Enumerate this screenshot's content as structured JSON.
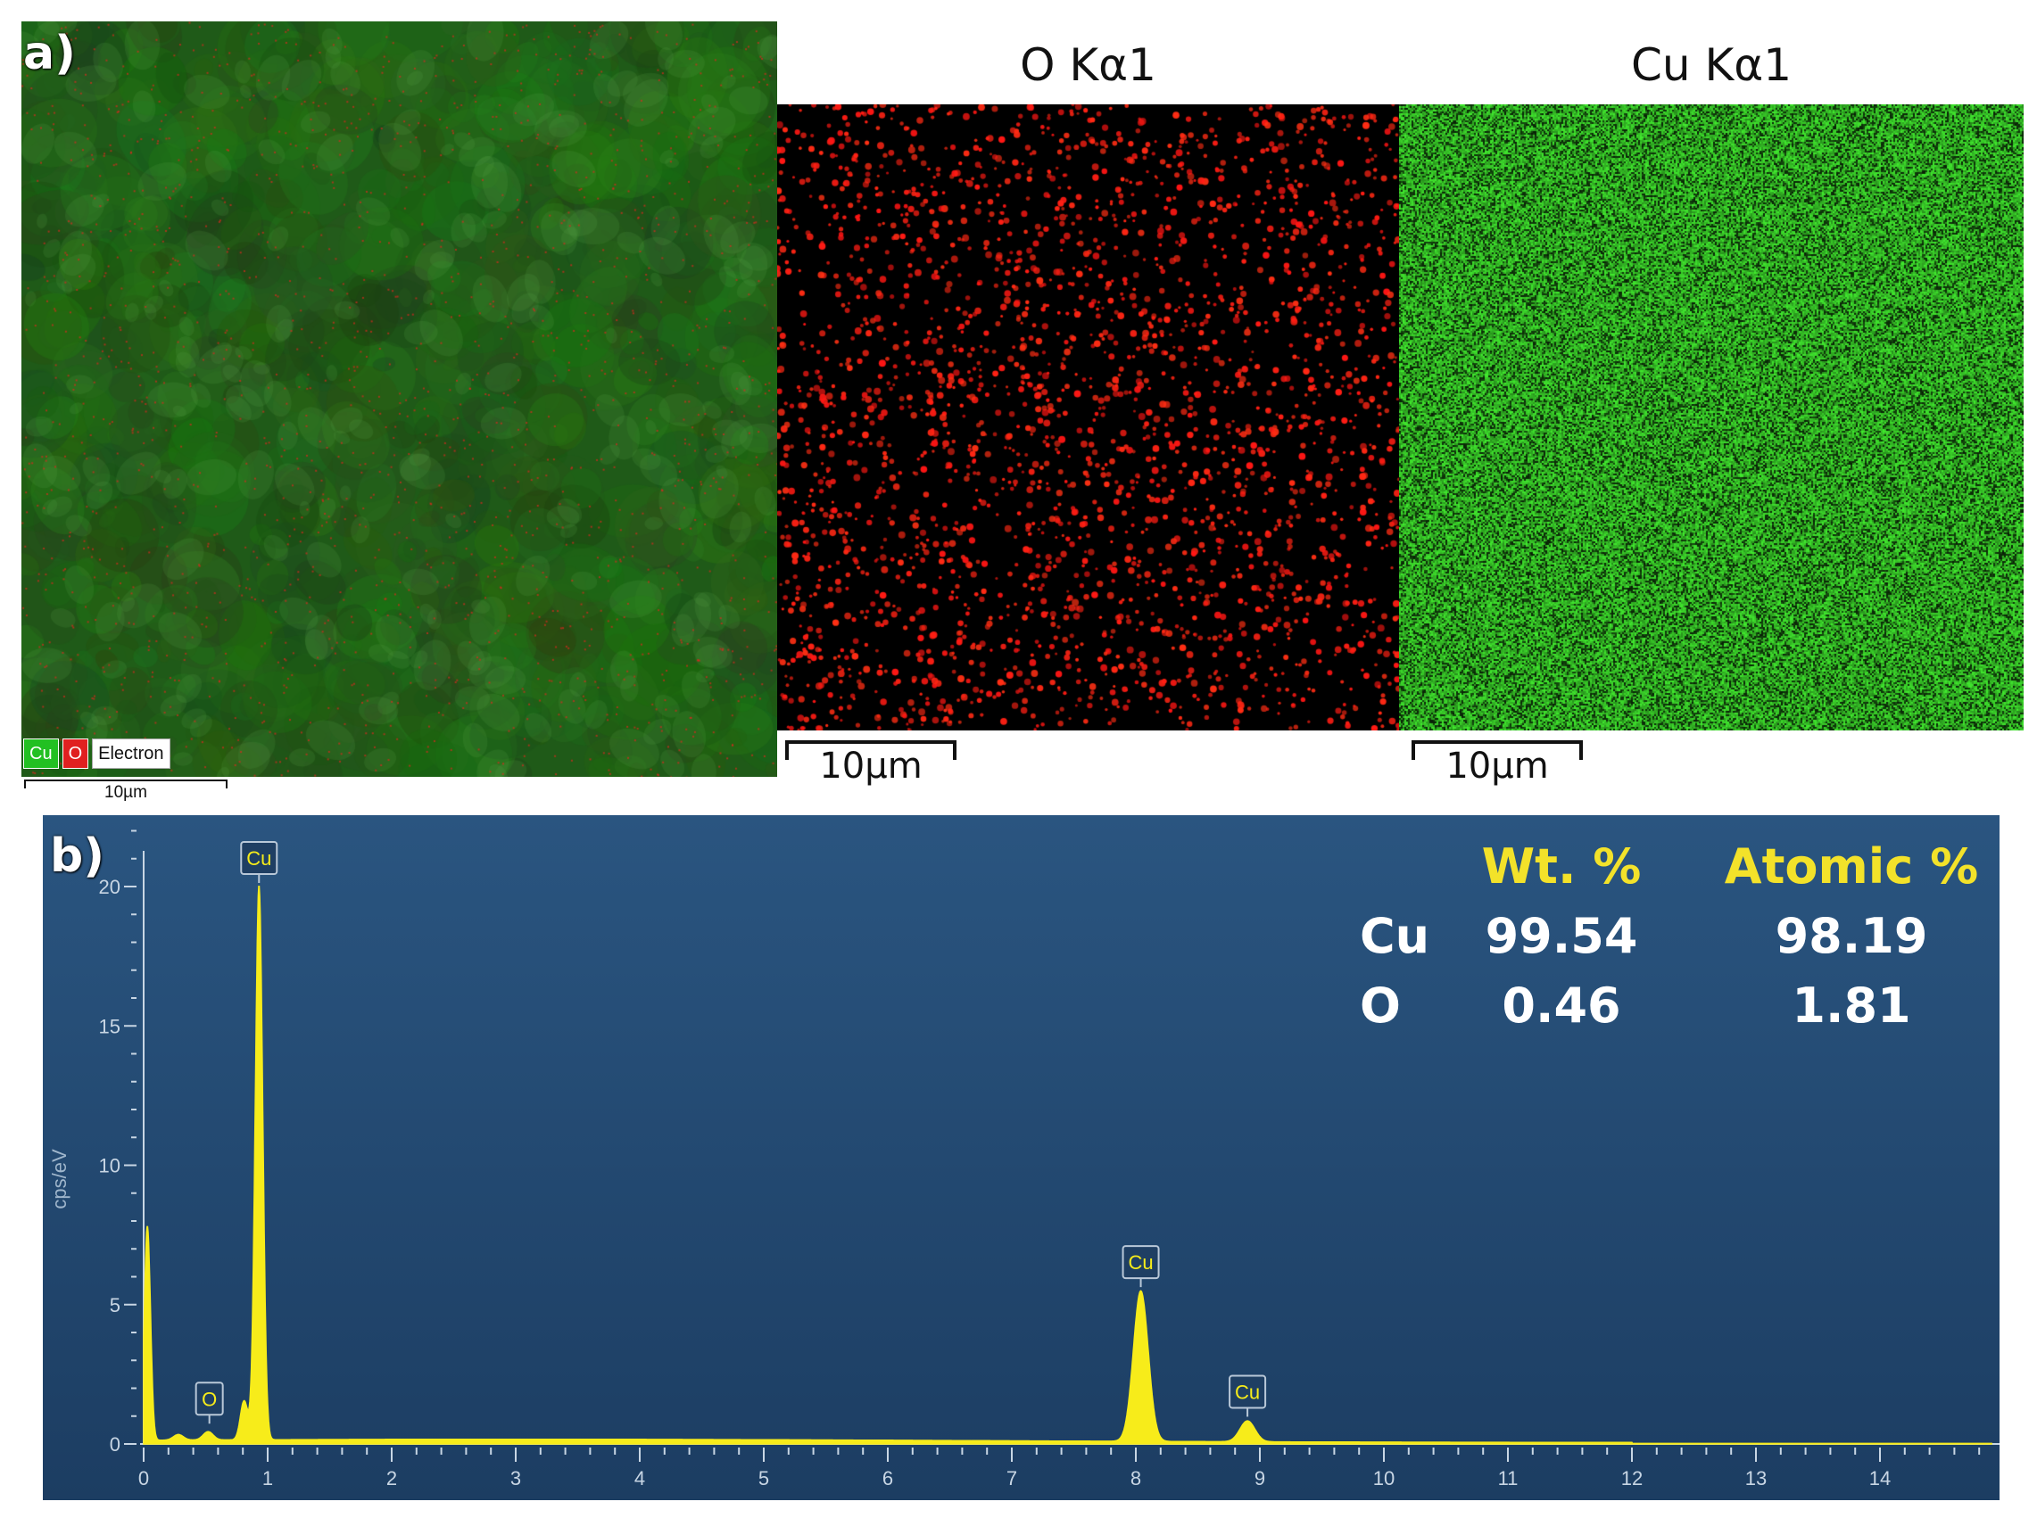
{
  "panel_a": {
    "letter": "a)",
    "overlay": {
      "legend": [
        {
          "label": "Cu",
          "color": "#22c022",
          "text_color": "#ffffff"
        },
        {
          "label": "O",
          "color": "#e02020",
          "text_color": "#ffffff"
        },
        {
          "label": "Electron",
          "color": "#ffffff",
          "text_color": "#111111"
        }
      ],
      "scale_label": "10µm"
    },
    "maps": [
      {
        "title": "O Kα1",
        "color": "#ff2020",
        "background": "#000000",
        "scale_label": "10µm"
      },
      {
        "title": "Cu Kα1",
        "color": "#38d22e",
        "background": "#0b3a08",
        "scale_label": "10µm"
      }
    ]
  },
  "panel_b": {
    "letter": "b)",
    "table": {
      "headers": [
        "Wt. %",
        "Atomic %"
      ],
      "rows": [
        {
          "element": "Cu",
          "wt": "99.54",
          "atomic": "98.19"
        },
        {
          "element": "O",
          "wt": "0.46",
          "atomic": "1.81"
        }
      ]
    }
  },
  "chart_data": {
    "type": "area",
    "ylabel": "cps/eV",
    "xlabel": "",
    "xlim": [
      0,
      15
    ],
    "ylim": [
      0,
      20
    ],
    "x_ticks": [
      "0",
      "1",
      "2",
      "3",
      "4",
      "5",
      "6",
      "7",
      "8",
      "9",
      "10",
      "11",
      "12",
      "13",
      "14",
      "1"
    ],
    "y_ticks": [
      "0",
      "5",
      "10",
      "15",
      "20"
    ],
    "series_color": "#f7ec1a",
    "background_color": "#24496f",
    "peaks": [
      {
        "x": 0.03,
        "height": 7.8,
        "width": 0.025
      },
      {
        "x": 0.28,
        "height": 0.2,
        "width": 0.04
      },
      {
        "x": 0.52,
        "height": 0.3,
        "width": 0.04
      },
      {
        "x": 0.81,
        "height": 1.4,
        "width": 0.03
      },
      {
        "x": 0.93,
        "height": 19.9,
        "width": 0.03
      },
      {
        "x": 8.04,
        "height": 5.4,
        "width": 0.06
      },
      {
        "x": 8.9,
        "height": 0.75,
        "width": 0.06
      }
    ],
    "baseline": 0.12,
    "peak_labels": [
      {
        "label": "Cu",
        "x": 0.93,
        "y": 20.0
      },
      {
        "label": "O",
        "x": 0.53,
        "y": 0.6
      },
      {
        "label": "Cu",
        "x": 8.04,
        "y": 5.5
      },
      {
        "label": "Cu",
        "x": 8.9,
        "y": 0.85
      }
    ]
  }
}
